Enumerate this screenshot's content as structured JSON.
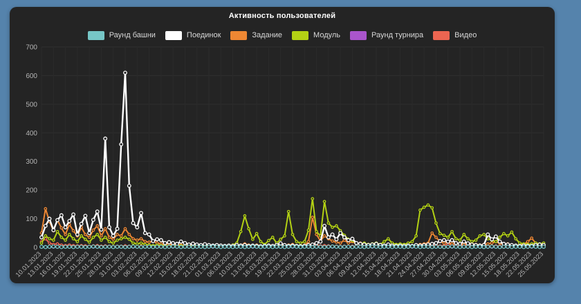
{
  "panel": {
    "title": "Активность пользователей"
  },
  "chart_data": {
    "type": "line",
    "title": "Активность пользователей",
    "xlabel": "",
    "ylabel": "",
    "ylim": [
      0,
      700
    ],
    "y_ticks": [
      0,
      100,
      200,
      300,
      400,
      500,
      600,
      700
    ],
    "grid": true,
    "legend_position": "top",
    "x_tick_labels": [
      "10.01.2023",
      "13.01.2023",
      "16.01.2023",
      "19.01.2023",
      "22.01.2023",
      "25.01.2023",
      "28.01.2023",
      "31.01.2023",
      "03.02.2023",
      "06.02.2023",
      "09.02.2023",
      "12.02.2023",
      "15.02.2023",
      "18.02.2023",
      "21.02.2023",
      "01.03.2023",
      "06.03.2023",
      "10.03.2023",
      "13.03.2023",
      "16.03.2023",
      "19.03.2023",
      "22.03.2023",
      "25.03.2023",
      "28.03.2023",
      "31.03.2023",
      "03.04.2023",
      "06.04.2023",
      "09.04.2023",
      "12.04.2023",
      "15.04.2023",
      "18.04.2023",
      "21.04.2023",
      "24.04.2023",
      "27.04.2023",
      "30.04.2023",
      "03.05.2023",
      "06.05.2023",
      "09.05.2023",
      "12.05.2023",
      "15.05.2023",
      "18.05.2023",
      "22.05.2023",
      "25.05.2023"
    ],
    "points_per_tick": 3,
    "series": [
      {
        "name": "Раунд турнира",
        "color": "#aa55cc",
        "values": [
          1,
          1,
          1,
          1,
          1,
          1,
          1,
          1,
          1,
          1,
          1,
          1,
          1,
          1,
          1,
          1,
          1,
          1,
          1,
          1,
          1,
          1,
          1,
          1,
          1,
          1,
          1,
          1,
          1,
          1,
          1,
          1,
          1,
          1,
          1,
          1,
          1,
          1,
          1,
          1,
          1,
          1,
          1,
          1,
          1,
          1,
          1,
          1,
          1,
          1,
          1,
          1,
          1,
          1,
          1,
          1,
          1,
          1,
          1,
          1,
          1,
          1,
          1,
          1,
          1,
          1,
          1,
          1,
          1,
          1,
          1,
          1,
          1,
          1,
          1,
          1,
          1,
          1,
          1,
          1,
          1,
          1,
          1,
          1,
          1,
          1,
          1,
          1,
          1,
          1,
          1,
          1,
          1,
          1,
          1,
          1,
          1,
          1,
          1,
          1,
          1,
          1,
          1,
          1,
          1,
          1,
          1,
          1,
          1,
          1,
          1,
          1,
          1,
          1,
          1,
          1,
          1,
          1,
          1,
          1,
          1,
          1,
          1,
          1,
          1,
          1,
          1
        ]
      },
      {
        "name": "Видео",
        "color": "#ec6551",
        "values": [
          20,
          30,
          15,
          10,
          12,
          8,
          6,
          8,
          6,
          5,
          6,
          5,
          4,
          5,
          6,
          4,
          5,
          4,
          3,
          4,
          4,
          5,
          4,
          3,
          3,
          4,
          3,
          3,
          2,
          3,
          2,
          2,
          2,
          2,
          2,
          2,
          2,
          2,
          2,
          2,
          2,
          2,
          2,
          2,
          2,
          2,
          2,
          2,
          2,
          3,
          3,
          4,
          3,
          2,
          3,
          2,
          2,
          3,
          2,
          2,
          3,
          2,
          5,
          4,
          3,
          2,
          3,
          5,
          10,
          8,
          5,
          6,
          5,
          4,
          4,
          3,
          4,
          3,
          4,
          3,
          3,
          3,
          2,
          2,
          3,
          2,
          2,
          3,
          2,
          2,
          2,
          2,
          2,
          2,
          3,
          4,
          5,
          6,
          8,
          6,
          5,
          6,
          12,
          8,
          5,
          4,
          8,
          5,
          4,
          3,
          3,
          4,
          5,
          4,
          5,
          4,
          3,
          4,
          3,
          2,
          3,
          4,
          8,
          10,
          5,
          3,
          4
        ]
      },
      {
        "name": "Задание",
        "color": "#ee8733",
        "values": [
          50,
          135,
          90,
          58,
          95,
          68,
          45,
          80,
          58,
          40,
          70,
          45,
          35,
          60,
          75,
          40,
          65,
          35,
          28,
          45,
          40,
          65,
          45,
          30,
          25,
          30,
          20,
          18,
          22,
          15,
          12,
          10,
          12,
          8,
          10,
          8,
          6,
          7,
          5,
          6,
          5,
          6,
          5,
          4,
          5,
          4,
          5,
          4,
          5,
          6,
          8,
          12,
          8,
          6,
          8,
          5,
          4,
          8,
          6,
          5,
          8,
          6,
          8,
          10,
          6,
          5,
          8,
          20,
          105,
          45,
          22,
          40,
          30,
          22,
          18,
          15,
          25,
          15,
          20,
          12,
          15,
          12,
          10,
          8,
          10,
          8,
          6,
          8,
          5,
          6,
          5,
          6,
          8,
          6,
          8,
          10,
          12,
          15,
          50,
          35,
          20,
          15,
          18,
          12,
          14,
          12,
          10,
          15,
          12,
          10,
          8,
          10,
          12,
          15,
          20,
          14,
          10,
          12,
          8,
          6,
          8,
          10,
          20,
          32,
          15,
          8,
          10
        ]
      },
      {
        "name": "Модуль",
        "color": "#b3d114",
        "values": [
          15,
          40,
          30,
          25,
          55,
          35,
          25,
          45,
          30,
          20,
          40,
          28,
          18,
          35,
          45,
          25,
          35,
          20,
          15,
          25,
          30,
          35,
          28,
          15,
          12,
          15,
          10,
          8,
          6,
          8,
          6,
          5,
          4,
          5,
          4,
          5,
          4,
          3,
          4,
          3,
          4,
          3,
          4,
          3,
          4,
          3,
          4,
          3,
          8,
          15,
          55,
          110,
          65,
          28,
          48,
          20,
          10,
          24,
          35,
          15,
          28,
          40,
          125,
          45,
          20,
          15,
          20,
          60,
          170,
          55,
          40,
          160,
          85,
          70,
          75,
          58,
          42,
          28,
          24,
          15,
          12,
          15,
          10,
          12,
          15,
          10,
          20,
          30,
          15,
          10,
          12,
          10,
          15,
          20,
          40,
          130,
          140,
          148,
          138,
          85,
          48,
          42,
          35,
          55,
          30,
          25,
          45,
          30,
          20,
          25,
          40,
          45,
          30,
          25,
          20,
          35,
          48,
          40,
          53,
          30,
          15,
          12,
          10,
          12,
          15,
          12,
          15
        ]
      },
      {
        "name": "Поединок",
        "color": "#ffffff",
        "values": [
          35,
          75,
          100,
          60,
          95,
          112,
          70,
          92,
          115,
          45,
          82,
          110,
          50,
          96,
          125,
          62,
          380,
          70,
          40,
          65,
          360,
          610,
          215,
          85,
          70,
          120,
          50,
          45,
          22,
          28,
          25,
          15,
          18,
          15,
          12,
          20,
          15,
          10,
          13,
          10,
          8,
          11,
          8,
          6,
          8,
          6,
          5,
          6,
          5,
          8,
          6,
          8,
          5,
          6,
          5,
          4,
          5,
          6,
          5,
          8,
          14,
          8,
          5,
          6,
          5,
          4,
          5,
          8,
          10,
          15,
          20,
          75,
          35,
          45,
          28,
          50,
          35,
          25,
          30,
          15,
          12,
          10,
          8,
          10,
          12,
          8,
          6,
          10,
          6,
          5,
          6,
          5,
          6,
          5,
          8,
          6,
          8,
          10,
          12,
          15,
          22,
          25,
          20,
          25,
          15,
          12,
          20,
          14,
          10,
          8,
          6,
          8,
          45,
          28,
          38,
          20,
          12,
          10,
          8,
          6,
          5,
          6,
          5,
          5,
          8,
          10,
          8
        ]
      },
      {
        "name": "Раунд башни",
        "color": "#76c6c6",
        "values": [
          2,
          1,
          2,
          3,
          2,
          1,
          2,
          2,
          1,
          2,
          2,
          1,
          2,
          3,
          2,
          1,
          2,
          2,
          1,
          2,
          2,
          1,
          2,
          3,
          2,
          1,
          2,
          2,
          1,
          2,
          2,
          1,
          2,
          3,
          2,
          1,
          2,
          2,
          1,
          2,
          2,
          1,
          2,
          3,
          2,
          1,
          2,
          2,
          1,
          2,
          2,
          1,
          2,
          3,
          2,
          1,
          2,
          2,
          1,
          2,
          2,
          1,
          2,
          3,
          2,
          1,
          2,
          2,
          1,
          2,
          2,
          1,
          2,
          3,
          2,
          1,
          2,
          2,
          1,
          2,
          2,
          1,
          2,
          3,
          2,
          1,
          2,
          2,
          1,
          2,
          2,
          1,
          2,
          3,
          2,
          1,
          2,
          2,
          1,
          2,
          2,
          1,
          2,
          3,
          2,
          1,
          2,
          2,
          1,
          2,
          2,
          1,
          2,
          3,
          2,
          1,
          2,
          2,
          1,
          2,
          2,
          1,
          2,
          3,
          2,
          1,
          2
        ]
      }
    ],
    "legend_order": [
      "Раунд башни",
      "Поединок",
      "Задание",
      "Модуль",
      "Раунд турнира",
      "Видео"
    ]
  },
  "colors": {
    "background": "#5583ac",
    "panel": "#242424",
    "grid": "#2f2f2f",
    "axis_text": "#b4b4b4",
    "title_text": "#ffffff"
  }
}
